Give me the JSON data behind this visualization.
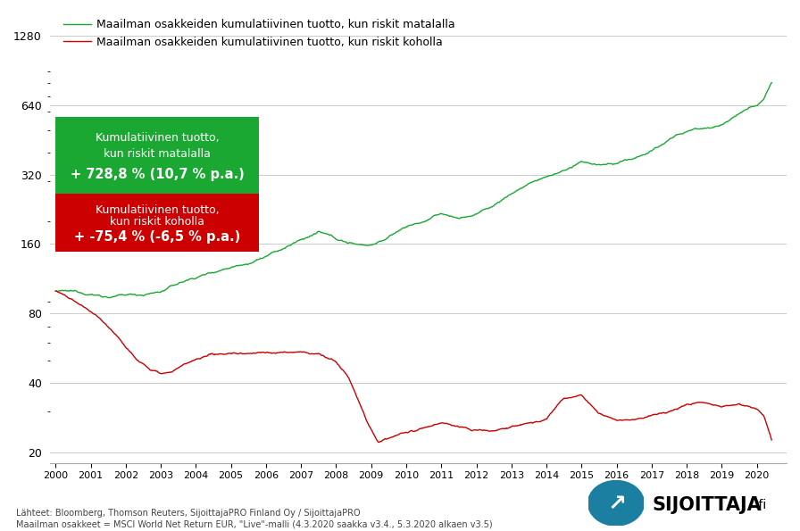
{
  "legend_green": "Maailman osakkeiden kumulatiivinen tuotto, kun riskit matalalla",
  "legend_red": "Maailman osakkeiden kumulatiivinen tuotto, kun riskit koholla",
  "box_green_line1": "Kumulatiivinen tuotto,",
  "box_green_line2": "kun riskit matalalla",
  "box_green_line3": "+ 728,8 % (10,7 % p.a.)",
  "box_red_line1": "Kumulatiivinen tuotto,",
  "box_red_line2": "kun riskit koholla",
  "box_red_line3": "+ -75,4 % (-6,5 % p.a.)",
  "footnote1": "Lähteet: Bloomberg, Thomson Reuters, SijoittajaPRO Finland Oy / SijoittajaPRO",
  "footnote2": "Maailman osakkeet = MSCI World Net Return EUR, \"Live\"-malli (4.3.2020 saakka v3.4., 5.3.2020 alkaen v3.5)",
  "green_color": "#1aa832",
  "red_color": "#cc0000",
  "box_green_color": "#1aa832",
  "box_red_color": "#cc0000",
  "background_color": "#ffffff",
  "yticks": [
    20,
    40,
    80,
    160,
    320,
    640,
    1280
  ],
  "ylim": [
    18,
    1600
  ],
  "teal_color": "#1a7fa0"
}
